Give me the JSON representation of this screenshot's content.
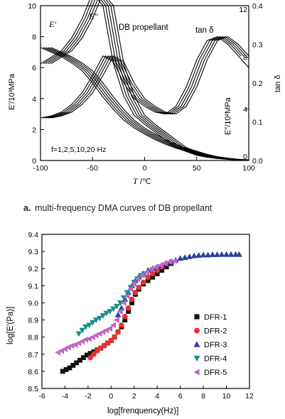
{
  "chart_data": [
    {
      "type": "line",
      "title": "DB propellant",
      "caption_letter": "a.",
      "caption_text": "multi-frequency DMA curves of DB propellant",
      "xlabel_symbol": "T",
      "xlabel_unit": "/℃",
      "ylabel_left": "E′/10³MPa",
      "ylabel_right_inner": "E″/10²MPa",
      "ylabel_right_outer": "tan δ",
      "annotations": {
        "storage": "E′",
        "loss": "E″",
        "tan": "tan δ",
        "freq": "f=1,2,5,10,20 Hz"
      },
      "xlim": [
        -100,
        100
      ],
      "xticks": [
        "-100",
        "-50",
        "0",
        "50",
        "100"
      ],
      "ylim_left": [
        0,
        10
      ],
      "yticks_left": [
        "0",
        "2",
        "4",
        "6",
        "8",
        "10"
      ],
      "yticks_right_inner": [
        "0",
        "4",
        "8",
        "12"
      ],
      "ylim_right_outer": [
        0,
        0.4
      ],
      "yticks_right_outer": [
        "0.0",
        "0.1",
        "0.2",
        "0.3",
        "0.4"
      ],
      "frequencies_hz": [
        1,
        2,
        5,
        10,
        20
      ],
      "series": [
        {
          "name": "E′",
          "axis": "left",
          "x": [
            -100,
            -90,
            -80,
            -70,
            -60,
            -50,
            -40,
            -30,
            -20,
            -10,
            0,
            10,
            20,
            30,
            40,
            50,
            60,
            70,
            80,
            90,
            100
          ],
          "values": [
            7.3,
            7.0,
            6.7,
            6.3,
            5.8,
            5.0,
            4.1,
            3.3,
            2.6,
            2.1,
            1.7,
            1.35,
            1.05,
            0.8,
            0.6,
            0.4,
            0.25,
            0.15,
            0.08,
            0.04,
            0.02
          ]
        },
        {
          "name": "E″",
          "axis": "right_inner",
          "x": [
            -100,
            -90,
            -80,
            -70,
            -60,
            -50,
            -40,
            -30,
            -20,
            -10,
            0,
            10,
            20,
            30,
            40,
            50,
            60,
            70,
            80,
            90,
            100
          ],
          "values": [
            7.5,
            8.0,
            8.5,
            9.5,
            11.0,
            13.0,
            12.0,
            7.5,
            5.0,
            3.5,
            2.8,
            2.2,
            1.6,
            1.0,
            0.7,
            0.4,
            0.25,
            0.15,
            0.08,
            0.04,
            0.02
          ]
        },
        {
          "name": "tan δ",
          "axis": "right_outer",
          "x": [
            -100,
            -90,
            -80,
            -70,
            -60,
            -50,
            -40,
            -30,
            -20,
            -10,
            0,
            10,
            20,
            30,
            40,
            50,
            60,
            70,
            80,
            90,
            100
          ],
          "values": [
            0.11,
            0.115,
            0.125,
            0.145,
            0.175,
            0.22,
            0.27,
            0.255,
            0.2,
            0.16,
            0.14,
            0.125,
            0.12,
            0.14,
            0.19,
            0.26,
            0.31,
            0.32,
            0.3,
            0.27,
            0.24
          ]
        }
      ]
    },
    {
      "type": "scatter",
      "xlabel": "log[frenquency(Hz)]",
      "ylabel": "log[E′(Pa)]",
      "xlim": [
        -6,
        12
      ],
      "ylim": [
        8.5,
        9.4
      ],
      "xticks": [
        "-6",
        "-4",
        "-2",
        "0",
        "2",
        "4",
        "6",
        "8",
        "10",
        "12"
      ],
      "yticks": [
        "8.5",
        "8.6",
        "8.7",
        "8.8",
        "8.9",
        "9.0",
        "9.1",
        "9.2",
        "9.3",
        "9.4"
      ],
      "legend_position": "right",
      "series": [
        {
          "name": "DFR-1",
          "color": "#111111",
          "marker": "square",
          "points": [
            [
              -4.2,
              8.6
            ],
            [
              -3.9,
              8.61
            ],
            [
              -3.6,
              8.62
            ],
            [
              -3.3,
              8.635
            ],
            [
              -3.0,
              8.65
            ],
            [
              -2.7,
              8.665
            ],
            [
              -2.4,
              8.68
            ],
            [
              -2.1,
              8.695
            ],
            [
              -1.8,
              8.705
            ],
            [
              -1.5,
              8.715
            ],
            [
              -1.2,
              8.725
            ],
            [
              -0.9,
              8.735
            ],
            [
              -0.6,
              8.75
            ],
            [
              -0.3,
              8.765
            ],
            [
              0.0,
              8.78
            ],
            [
              0.3,
              8.8
            ],
            [
              0.6,
              8.83
            ],
            [
              0.9,
              8.86
            ],
            [
              1.2,
              8.9
            ],
            [
              1.5,
              8.95
            ],
            [
              1.8,
              9.0
            ],
            [
              2.1,
              9.05
            ],
            [
              2.4,
              9.08
            ],
            [
              2.8,
              9.11
            ],
            [
              3.2,
              9.13
            ],
            [
              3.6,
              9.15
            ],
            [
              4.0,
              9.17
            ],
            [
              4.4,
              9.19
            ],
            [
              4.8,
              9.21
            ],
            [
              5.2,
              9.23
            ]
          ]
        },
        {
          "name": "DFR-2",
          "color": "#e83030",
          "marker": "circle",
          "points": [
            [
              -1.8,
              8.68
            ],
            [
              -1.5,
              8.7
            ],
            [
              -1.2,
              8.72
            ],
            [
              -0.9,
              8.735
            ],
            [
              -0.6,
              8.75
            ],
            [
              -0.3,
              8.765
            ],
            [
              0.0,
              8.78
            ],
            [
              0.3,
              8.8
            ],
            [
              0.6,
              8.83
            ],
            [
              0.9,
              8.87
            ],
            [
              1.2,
              8.92
            ],
            [
              1.5,
              8.97
            ],
            [
              1.8,
              9.02
            ],
            [
              2.1,
              9.06
            ],
            [
              2.4,
              9.09
            ],
            [
              2.8,
              9.12
            ],
            [
              3.2,
              9.15
            ],
            [
              3.6,
              9.17
            ],
            [
              4.0,
              9.19
            ],
            [
              4.4,
              9.21
            ],
            [
              4.8,
              9.23
            ],
            [
              5.2,
              9.24
            ]
          ]
        },
        {
          "name": "DFR-3",
          "color": "#2b3d9e",
          "marker": "triangle-up",
          "points": [
            [
              0.6,
              8.93
            ],
            [
              0.9,
              8.97
            ],
            [
              1.2,
              9.02
            ],
            [
              1.5,
              9.06
            ],
            [
              1.8,
              9.1
            ],
            [
              2.1,
              9.13
            ],
            [
              2.4,
              9.15
            ],
            [
              2.8,
              9.17
            ],
            [
              3.2,
              9.19
            ],
            [
              3.6,
              9.2
            ],
            [
              4.0,
              9.21
            ],
            [
              4.4,
              9.22
            ],
            [
              4.8,
              9.23
            ],
            [
              5.2,
              9.24
            ],
            [
              5.6,
              9.25
            ],
            [
              6.0,
              9.26
            ],
            [
              6.4,
              9.265
            ],
            [
              6.8,
              9.27
            ],
            [
              7.2,
              9.275
            ],
            [
              7.6,
              9.278
            ],
            [
              8.0,
              9.28
            ],
            [
              8.4,
              9.28
            ],
            [
              8.8,
              9.282
            ],
            [
              9.2,
              9.282
            ],
            [
              9.6,
              9.283
            ],
            [
              10.0,
              9.283
            ],
            [
              10.4,
              9.283
            ],
            [
              10.8,
              9.283
            ],
            [
              11.1,
              9.283
            ]
          ]
        },
        {
          "name": "DFR-4",
          "color": "#1a8f8a",
          "marker": "triangle-down",
          "points": [
            [
              -2.8,
              8.82
            ],
            [
              -2.5,
              8.84
            ],
            [
              -2.2,
              8.86
            ],
            [
              -1.9,
              8.87
            ],
            [
              -1.6,
              8.885
            ],
            [
              -1.3,
              8.9
            ],
            [
              -1.0,
              8.91
            ],
            [
              -0.7,
              8.925
            ],
            [
              -0.4,
              8.94
            ],
            [
              -0.1,
              8.95
            ],
            [
              0.2,
              8.965
            ],
            [
              0.5,
              8.98
            ],
            [
              0.8,
              9.0
            ],
            [
              1.1,
              9.03
            ],
            [
              1.4,
              9.06
            ],
            [
              1.7,
              9.09
            ],
            [
              2.0,
              9.12
            ],
            [
              2.3,
              9.14
            ],
            [
              2.6,
              9.16
            ],
            [
              2.9,
              9.17
            ]
          ]
        },
        {
          "name": "DFR-5",
          "color": "#c266c6",
          "marker": "triangle-left",
          "points": [
            [
              -4.6,
              8.71
            ],
            [
              -4.3,
              8.72
            ],
            [
              -4.0,
              8.73
            ],
            [
              -3.7,
              8.74
            ],
            [
              -3.4,
              8.75
            ],
            [
              -3.1,
              8.755
            ],
            [
              -2.8,
              8.765
            ],
            [
              -2.5,
              8.775
            ],
            [
              -2.2,
              8.785
            ],
            [
              -1.9,
              8.79
            ],
            [
              -1.6,
              8.8
            ],
            [
              -1.3,
              8.81
            ],
            [
              -1.0,
              8.82
            ],
            [
              -0.7,
              8.83
            ],
            [
              -0.4,
              8.84
            ],
            [
              -0.1,
              8.85
            ],
            [
              0.2,
              8.87
            ],
            [
              0.5,
              8.9
            ],
            [
              0.8,
              8.95
            ],
            [
              1.1,
              9.0
            ],
            [
              1.4,
              9.04
            ],
            [
              1.7,
              9.08
            ],
            [
              2.0,
              9.11
            ],
            [
              2.3,
              9.14
            ],
            [
              2.7,
              9.16
            ],
            [
              3.1,
              9.18
            ],
            [
              3.5,
              9.2
            ],
            [
              3.9,
              9.21
            ],
            [
              4.3,
              9.22
            ],
            [
              4.7,
              9.23
            ],
            [
              5.1,
              9.24
            ],
            [
              5.5,
              9.245
            ]
          ]
        }
      ]
    }
  ]
}
